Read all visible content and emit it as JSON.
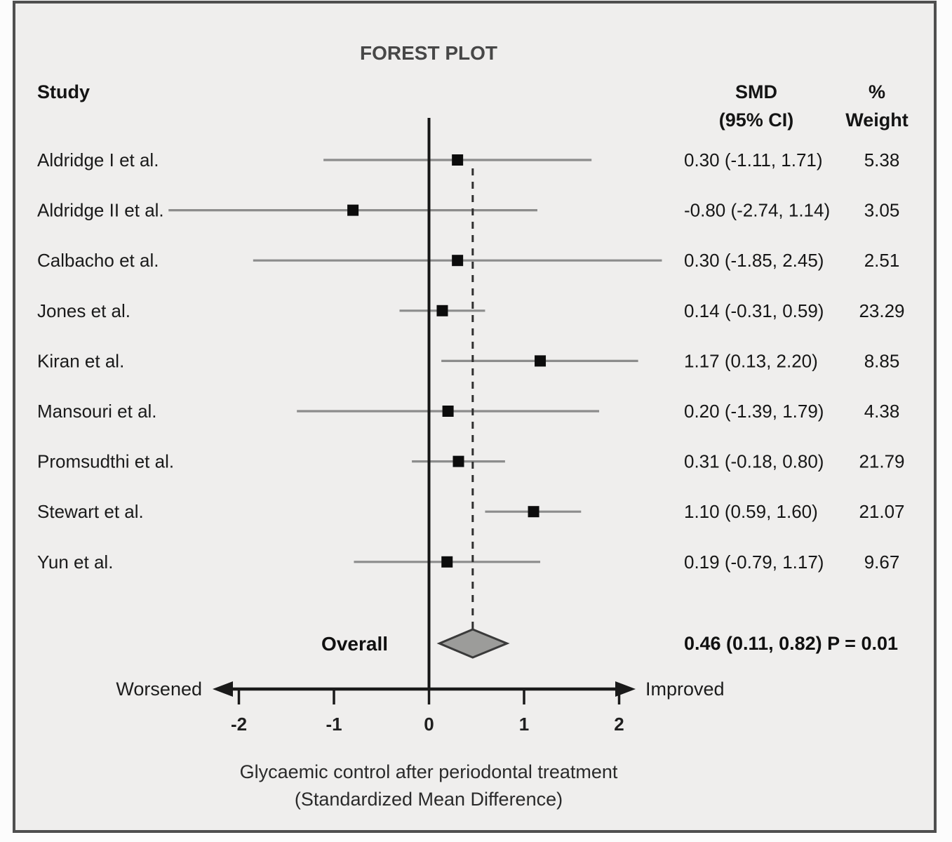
{
  "figure": {
    "title": "FOREST PLOT",
    "columns": {
      "study": "Study",
      "smd_line1": "SMD",
      "smd_line2": "(95% CI)",
      "weight_line1": "%",
      "weight_line2": "Weight"
    },
    "axis": {
      "left_direction_label": "Worsened",
      "right_direction_label": "Improved"
    },
    "caption_line1": "Glycaemic control after periodontal treatment",
    "caption_line2": "(Standardized Mean Difference)"
  },
  "chart_data": {
    "type": "forest",
    "title": "FOREST PLOT",
    "xlabel": "Glycaemic control after periodontal treatment (Standardized Mean Difference)",
    "x_ticks": [
      -2,
      -1,
      0,
      1,
      2
    ],
    "xlim": [
      -2.9,
      2.55
    ],
    "zero_line": 0,
    "grid": false,
    "studies": [
      {
        "label": "Aldridge I et al.",
        "est": 0.3,
        "lo": -1.11,
        "hi": 1.71,
        "weight": 5.38,
        "ci_display": "0.30 (-1.11, 1.71)",
        "weight_display": "5.38"
      },
      {
        "label": "Aldridge II et al.",
        "est": -0.8,
        "lo": -2.74,
        "hi": 1.14,
        "weight": 3.05,
        "ci_display": "-0.80 (-2.74, 1.14)",
        "weight_display": "3.05"
      },
      {
        "label": "Calbacho et al.",
        "est": 0.3,
        "lo": -1.85,
        "hi": 2.45,
        "weight": 2.51,
        "ci_display": "0.30 (-1.85, 2.45)",
        "weight_display": "2.51"
      },
      {
        "label": "Jones et al.",
        "est": 0.14,
        "lo": -0.31,
        "hi": 0.59,
        "weight": 23.29,
        "ci_display": "0.14 (-0.31, 0.59)",
        "weight_display": "23.29"
      },
      {
        "label": "Kiran et al.",
        "est": 1.17,
        "lo": 0.13,
        "hi": 2.2,
        "weight": 8.85,
        "ci_display": "1.17 (0.13, 2.20)",
        "weight_display": "8.85"
      },
      {
        "label": "Mansouri et al.",
        "est": 0.2,
        "lo": -1.39,
        "hi": 1.79,
        "weight": 4.38,
        "ci_display": "0.20 (-1.39, 1.79)",
        "weight_display": "4.38"
      },
      {
        "label": "Promsudthi et al.",
        "est": 0.31,
        "lo": -0.18,
        "hi": 0.8,
        "weight": 21.79,
        "ci_display": "0.31 (-0.18, 0.80)",
        "weight_display": "21.79"
      },
      {
        "label": "Stewart et al.",
        "est": 1.1,
        "lo": 0.59,
        "hi": 1.6,
        "weight": 21.07,
        "ci_display": "1.10 (0.59, 1.60)",
        "weight_display": "21.07"
      },
      {
        "label": "Yun et al.",
        "est": 0.19,
        "lo": -0.79,
        "hi": 1.17,
        "weight": 9.67,
        "ci_display": "0.19 (-0.79, 1.17)",
        "weight_display": "9.67"
      }
    ],
    "overall": {
      "label": "Overall",
      "est": 0.46,
      "lo": 0.11,
      "hi": 0.82,
      "p_text": "P = 0.01",
      "display": "0.46 (0.11, 0.82) P = 0.01"
    },
    "colors": {
      "panel_bg": "#efeeed",
      "panel_border": "#4f4f4f",
      "ci_line": "#8c8c8c",
      "zero_line": "#161616",
      "dashed_line": "#2f2f2f",
      "marker": "#0c0c0c",
      "diamond_fill": "#9c9c9a",
      "diamond_stroke": "#3a3a3a",
      "axis": "#1a1a1a"
    },
    "legend": null
  }
}
